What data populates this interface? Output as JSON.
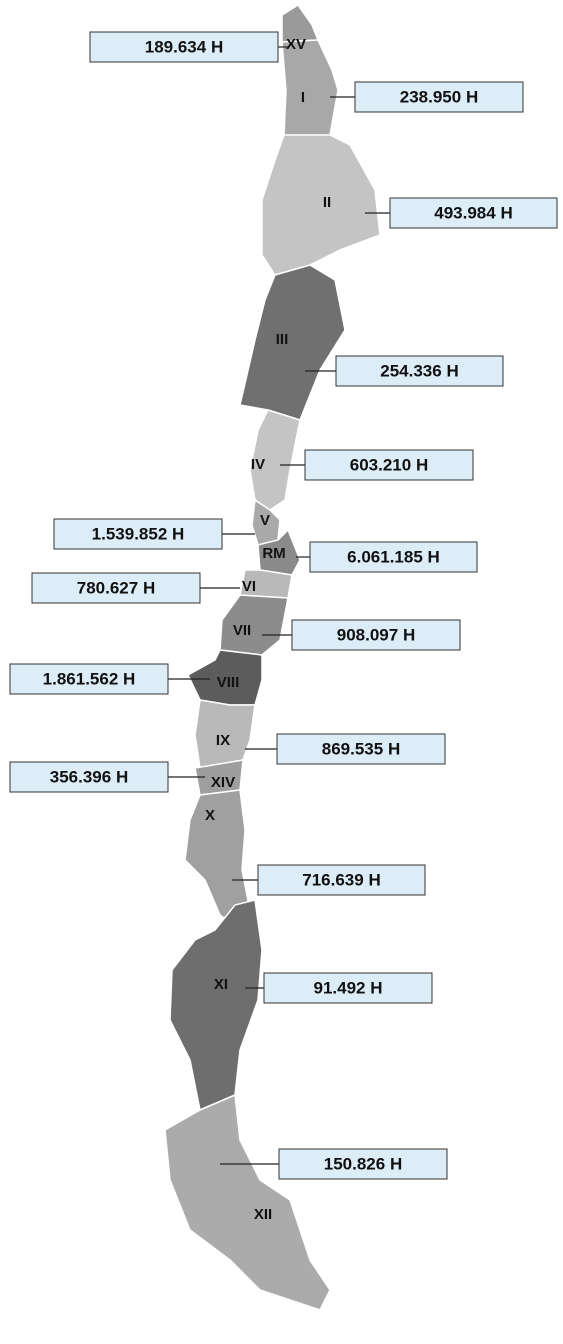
{
  "regions": [
    {
      "code": "XV",
      "population": "189.634 H"
    },
    {
      "code": "I",
      "population": "238.950 H"
    },
    {
      "code": "II",
      "population": "493.984 H"
    },
    {
      "code": "III",
      "population": "254.336 H"
    },
    {
      "code": "IV",
      "population": "603.210 H"
    },
    {
      "code": "V",
      "population": "1.539.852 H"
    },
    {
      "code": "RM",
      "population": "6.061.185 H"
    },
    {
      "code": "VI",
      "population": "780.627 H"
    },
    {
      "code": "VII",
      "population": "908.097 H"
    },
    {
      "code": "VIII",
      "population": "1.861.562 H"
    },
    {
      "code": "IX",
      "population": "869.535 H"
    },
    {
      "code": "XIV",
      "population": "356.396 H"
    },
    {
      "code": "X",
      "population": "716.639 H"
    },
    {
      "code": "XI",
      "population": "91.492 H"
    },
    {
      "code": "XII",
      "population": "150.826 H"
    }
  ]
}
